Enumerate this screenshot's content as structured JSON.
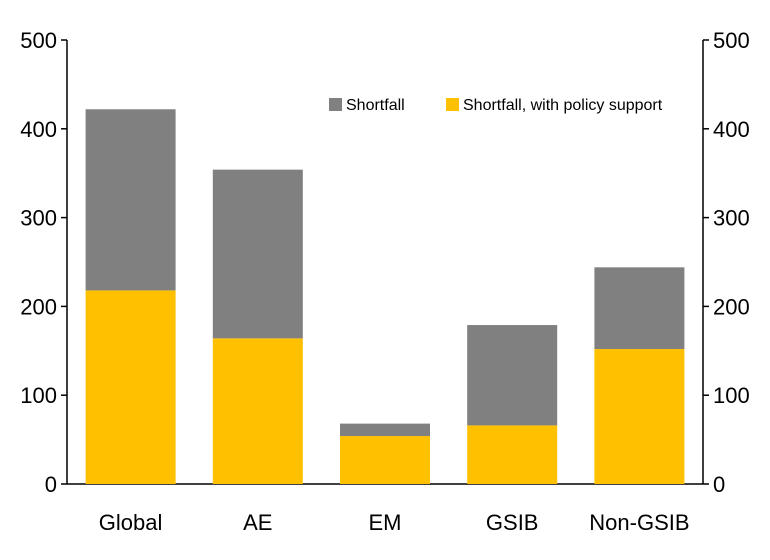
{
  "chart_data": {
    "type": "bar",
    "stacked": true,
    "categories": [
      "Global",
      "AE",
      "EM",
      "GSIB",
      "Non-GSIB"
    ],
    "series": [
      {
        "name": "Shortfall, with policy support",
        "color": "#FFC000",
        "values": [
          218,
          164,
          54,
          66,
          152
        ]
      },
      {
        "name": "Shortfall",
        "color": "#808080",
        "values": [
          204,
          190,
          14,
          113,
          92
        ]
      }
    ],
    "totals": [
      422,
      354,
      68,
      179,
      244
    ],
    "ylim": [
      0,
      500
    ],
    "yticks": [
      "0",
      "100",
      "200",
      "300",
      "400",
      "500"
    ],
    "secondary_yticks": [
      "0",
      "100",
      "200",
      "300",
      "400",
      "500"
    ],
    "legend_position": "top-right",
    "grid": false,
    "title": "",
    "xlabel": "",
    "ylabel": ""
  }
}
